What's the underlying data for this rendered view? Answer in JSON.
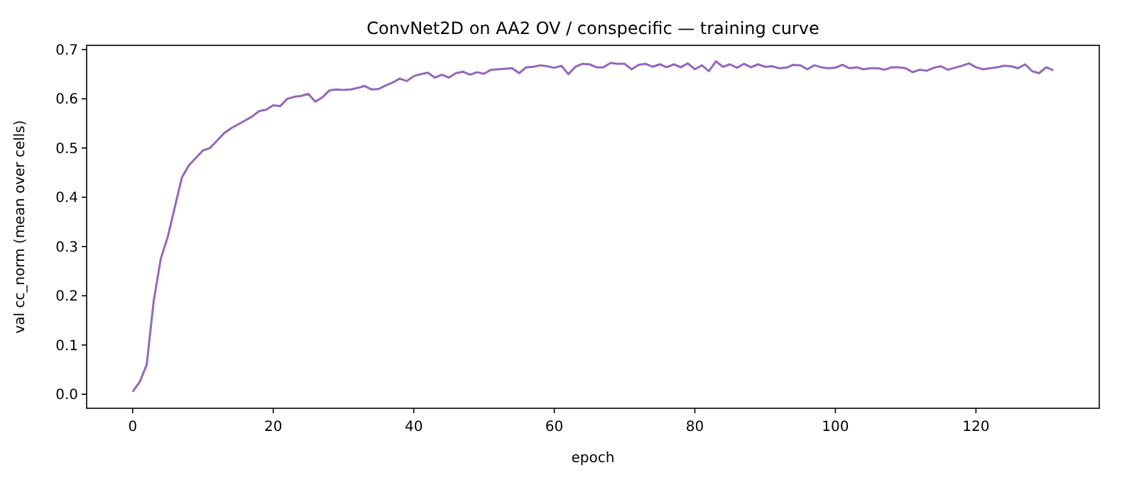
{
  "chart_data": {
    "type": "line",
    "title": "ConvNet2D on AA2 OV / conspecific — training curve",
    "xlabel": "epoch",
    "ylabel": "val cc_norm (mean over cells)",
    "x": [
      0,
      1,
      2,
      3,
      4,
      5,
      6,
      7,
      8,
      9,
      10,
      11,
      12,
      13,
      14,
      15,
      16,
      17,
      18,
      19,
      20,
      21,
      22,
      23,
      24,
      25,
      26,
      27,
      28,
      29,
      30,
      31,
      32,
      33,
      34,
      35,
      36,
      37,
      38,
      39,
      40,
      41,
      42,
      43,
      44,
      45,
      46,
      47,
      48,
      49,
      50,
      51,
      52,
      53,
      54,
      55,
      56,
      57,
      58,
      59,
      60,
      61,
      62,
      63,
      64,
      65,
      66,
      67,
      68,
      69,
      70,
      71,
      72,
      73,
      74,
      75,
      76,
      77,
      78,
      79,
      80,
      81,
      82,
      83,
      84,
      85,
      86,
      87,
      88,
      89,
      90,
      91,
      92,
      93,
      94,
      95,
      96,
      97,
      98,
      99,
      100,
      101,
      102,
      103,
      104,
      105,
      106,
      107,
      108,
      109,
      110,
      111,
      112,
      113,
      114,
      115,
      116,
      117,
      118,
      119,
      120,
      121,
      122,
      123,
      124,
      125,
      126,
      127,
      128,
      129,
      130,
      131
    ],
    "series": [
      {
        "color": "#9467bd",
        "values": [
          0.005,
          0.025,
          0.06,
          0.19,
          0.275,
          0.32,
          0.38,
          0.44,
          0.465,
          0.48,
          0.495,
          0.5,
          0.515,
          0.53,
          0.54,
          0.548,
          0.556,
          0.564,
          0.575,
          0.578,
          0.587,
          0.585,
          0.6,
          0.604,
          0.606,
          0.61,
          0.594,
          0.603,
          0.617,
          0.619,
          0.618,
          0.619,
          0.622,
          0.626,
          0.619,
          0.62,
          0.627,
          0.633,
          0.641,
          0.636,
          0.646,
          0.65,
          0.653,
          0.643,
          0.649,
          0.643,
          0.652,
          0.655,
          0.649,
          0.654,
          0.651,
          0.659,
          0.66,
          0.661,
          0.662,
          0.652,
          0.664,
          0.665,
          0.668,
          0.666,
          0.663,
          0.667,
          0.65,
          0.665,
          0.671,
          0.67,
          0.664,
          0.664,
          0.673,
          0.671,
          0.671,
          0.66,
          0.669,
          0.671,
          0.665,
          0.67,
          0.664,
          0.67,
          0.664,
          0.672,
          0.66,
          0.668,
          0.656,
          0.676,
          0.665,
          0.67,
          0.663,
          0.671,
          0.664,
          0.67,
          0.665,
          0.666,
          0.662,
          0.663,
          0.669,
          0.668,
          0.66,
          0.668,
          0.664,
          0.662,
          0.663,
          0.669,
          0.662,
          0.664,
          0.66,
          0.662,
          0.662,
          0.659,
          0.664,
          0.664,
          0.662,
          0.654,
          0.659,
          0.657,
          0.663,
          0.666,
          0.659,
          0.663,
          0.667,
          0.672,
          0.664,
          0.66,
          0.662,
          0.664,
          0.667,
          0.666,
          0.662,
          0.67,
          0.656,
          0.652,
          0.664,
          0.658
        ]
      }
    ],
    "xlim": [
      -6.55,
      137.55
    ],
    "xticks": [
      0,
      20,
      40,
      60,
      80,
      100,
      120
    ],
    "ylim": [
      -0.0285,
      0.7085
    ],
    "yticks": [
      {
        "value": 0,
        "label": "0.0"
      },
      {
        "value": 0.1,
        "label": "0.1"
      },
      {
        "value": 0.2,
        "label": "0.2"
      },
      {
        "value": 0.3,
        "label": "0.3"
      },
      {
        "value": 0.4,
        "label": "0.4"
      },
      {
        "value": 0.5,
        "label": "0.5"
      },
      {
        "value": 0.6,
        "label": "0.6"
      },
      {
        "value": 0.7,
        "label": "0.7"
      }
    ],
    "grid": false
  }
}
